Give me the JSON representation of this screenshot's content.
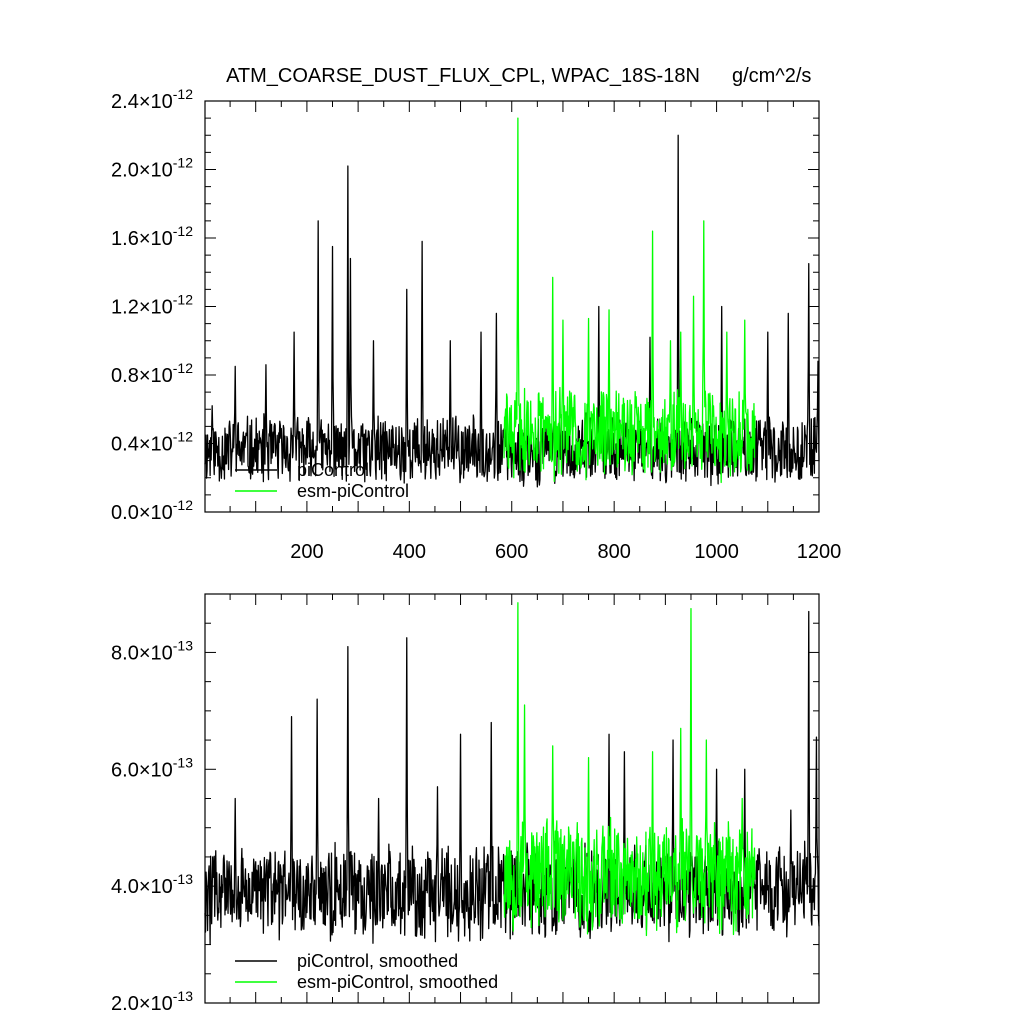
{
  "title": "ATM_COARSE_DUST_FLUX_CPL, WPAC_18S-18N",
  "units": "g/cm^2/s",
  "colors": {
    "piControl": "#000000",
    "esm_piControl": "#00ff00"
  },
  "chart_data": [
    {
      "type": "line",
      "panel": "top",
      "xlim": [
        1,
        1200
      ],
      "ylim": [
        0.0,
        2.4e-12
      ],
      "x_ticks": [
        "200",
        "400",
        "600",
        "800",
        "1000",
        "1200"
      ],
      "y_ticks": [
        {
          "mantissa": "0.0",
          "exp": "-12"
        },
        {
          "mantissa": "0.4",
          "exp": "-12"
        },
        {
          "mantissa": "0.8",
          "exp": "-12"
        },
        {
          "mantissa": "1.2",
          "exp": "-12"
        },
        {
          "mantissa": "1.6",
          "exp": "-12"
        },
        {
          "mantissa": "2.0",
          "exp": "-12"
        },
        {
          "mantissa": "2.4",
          "exp": "-12"
        }
      ],
      "legend": "bottom-left",
      "series": [
        {
          "name": "piControl",
          "color": "#000000",
          "x_start": 1,
          "x_end": 1200,
          "baseline": 3.6e-13,
          "noise": 2.2e-13,
          "min": 1.2e-13,
          "seed": 11,
          "peaks": [
            [
              15,
              6.2e-13
            ],
            [
              60,
              8.5e-13
            ],
            [
              120,
              8.6e-13
            ],
            [
              175,
              1.05e-12
            ],
            [
              222,
              1.7e-12
            ],
            [
              250,
              1.55e-12
            ],
            [
              280,
              2.02e-12
            ],
            [
              285,
              1.48e-12
            ],
            [
              330,
              1e-12
            ],
            [
              395,
              1.3e-12
            ],
            [
              425,
              1.58e-12
            ],
            [
              480,
              1e-12
            ],
            [
              540,
              1.05e-12
            ],
            [
              570,
              1.16e-12
            ],
            [
              770,
              1.2e-12
            ],
            [
              870,
              1.02e-12
            ],
            [
              925,
              2.2e-12
            ],
            [
              1010,
              1.2e-12
            ],
            [
              1100,
              1.05e-12
            ],
            [
              1140,
              1.16e-12
            ],
            [
              1180,
              1.45e-12
            ],
            [
              1198,
              8.8e-13
            ]
          ]
        },
        {
          "name": "esm-piControl",
          "color": "#00ff00",
          "x_start": 585,
          "x_end": 1075,
          "baseline": 4.6e-13,
          "noise": 3e-13,
          "min": 1.3e-13,
          "seed": 29,
          "peaks": [
            [
              612,
              2.3e-12
            ],
            [
              680,
              1.37e-12
            ],
            [
              700,
              1.12e-12
            ],
            [
              750,
              1.13e-12
            ],
            [
              790,
              1.18e-12
            ],
            [
              875,
              1.64e-12
            ],
            [
              910,
              1e-12
            ],
            [
              930,
              1.05e-12
            ],
            [
              955,
              1.26e-12
            ],
            [
              975,
              1.7e-12
            ],
            [
              1020,
              1.05e-12
            ],
            [
              1055,
              1.12e-12
            ]
          ]
        }
      ]
    },
    {
      "type": "line",
      "panel": "bottom",
      "xlim": [
        1,
        1200
      ],
      "ylim": [
        2e-13,
        9e-13
      ],
      "y_ticks": [
        {
          "mantissa": "2.0",
          "exp": "-13"
        },
        {
          "mantissa": "4.0",
          "exp": "-13"
        },
        {
          "mantissa": "6.0",
          "exp": "-13"
        },
        {
          "mantissa": "8.0",
          "exp": "-13"
        }
      ],
      "legend": "bottom-left",
      "series": [
        {
          "name": "piControl, smoothed",
          "color": "#000000",
          "x_start": 1,
          "x_end": 1200,
          "baseline": 3.9e-13,
          "noise": 9e-14,
          "min": 2.6e-13,
          "seed": 47,
          "peaks": [
            [
              60,
              5.5e-13
            ],
            [
              170,
              6.9e-13
            ],
            [
              220,
              7.2e-13
            ],
            [
              280,
              8.1e-13
            ],
            [
              340,
              5.5e-13
            ],
            [
              395,
              8.25e-13
            ],
            [
              455,
              5.7e-13
            ],
            [
              500,
              6.6e-13
            ],
            [
              560,
              6.8e-13
            ],
            [
              790,
              6.6e-13
            ],
            [
              820,
              6.3e-13
            ],
            [
              915,
              6.5e-13
            ],
            [
              1000,
              6e-13
            ],
            [
              1055,
              6e-13
            ],
            [
              1145,
              5.3e-13
            ],
            [
              1180,
              8.7e-13
            ],
            [
              1195,
              6.55e-13
            ]
          ]
        },
        {
          "name": "esm-piControl, smoothed",
          "color": "#00ff00",
          "x_start": 585,
          "x_end": 1075,
          "baseline": 4.2e-13,
          "noise": 1.1e-13,
          "min": 2.5e-13,
          "seed": 53,
          "peaks": [
            [
              612,
              8.85e-13
            ],
            [
              625,
              7.1e-13
            ],
            [
              680,
              6.4e-13
            ],
            [
              750,
              6.2e-13
            ],
            [
              875,
              6.3e-13
            ],
            [
              930,
              6.7e-13
            ],
            [
              950,
              8.75e-13
            ],
            [
              980,
              6.5e-13
            ],
            [
              1050,
              5.5e-13
            ]
          ]
        }
      ]
    }
  ]
}
